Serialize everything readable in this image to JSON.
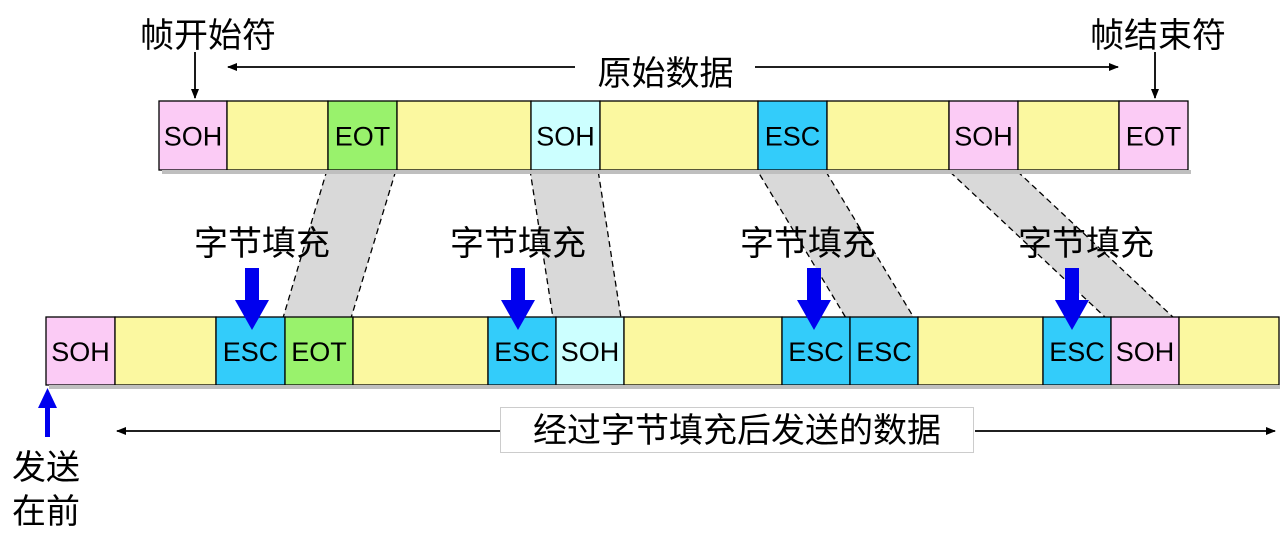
{
  "colors": {
    "data": "#FBF8A0",
    "soh_pink": "#FBCBF5",
    "soh_light": "#CCFFFF",
    "eot_green": "#99F26C",
    "esc_blue": "#33CCFA",
    "shade": "#D9D9D9",
    "arrow_blue": "#0000EE"
  },
  "labels": {
    "frame_start": "帧开始符",
    "frame_end": "帧结束符",
    "original_data": "原始数据",
    "byte_stuffing": "字节填充",
    "stuffed_data": "经过字节填充后发送的数据",
    "send_first_line1": "发送",
    "send_first_line2": "在前"
  },
  "top_row": [
    "SOH",
    "",
    "EOT",
    "",
    "SOH",
    "",
    "ESC",
    "",
    "SOH",
    "",
    "EOT"
  ],
  "bottom_row": [
    "SOH",
    "",
    "ESC",
    "EOT",
    "",
    "ESC",
    "SOH",
    "",
    "ESC",
    "ESC",
    "",
    "ESC",
    "SOH",
    ""
  ]
}
